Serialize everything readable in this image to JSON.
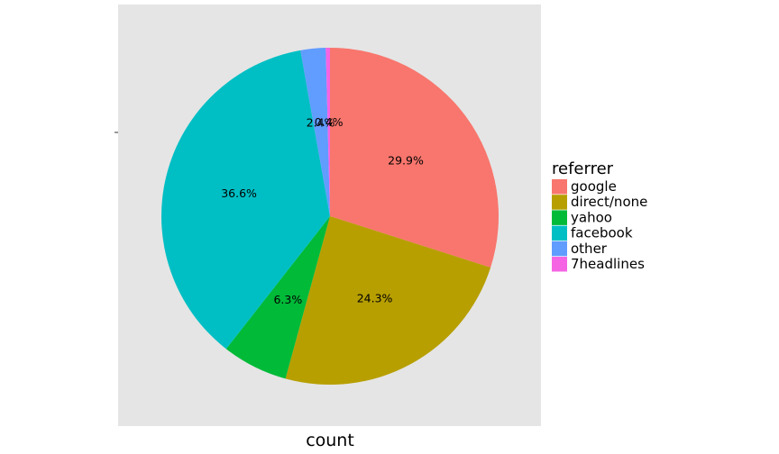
{
  "chart_data": {
    "type": "pie",
    "title": "",
    "xlabel": "count",
    "ylabel": "",
    "grid": false,
    "legend": {
      "title": "referrer",
      "placement": "right"
    },
    "start_angle_deg": 0,
    "direction": "clockwise",
    "slices": [
      {
        "name": "google",
        "value": 29.9,
        "label": "29.9%",
        "color": "#F8766D"
      },
      {
        "name": "direct/none",
        "value": 24.3,
        "label": "24.3%",
        "color": "#B79F00"
      },
      {
        "name": "yahoo",
        "value": 6.3,
        "label": "6.3%",
        "color": "#00BA38"
      },
      {
        "name": "facebook",
        "value": 36.6,
        "label": "36.6%",
        "color": "#00BFC4"
      },
      {
        "name": "other",
        "value": 2.4,
        "label": "2.4%",
        "color": "#619CFF"
      },
      {
        "name": "7headlines",
        "value": 0.4,
        "label": "0.4%",
        "color": "#F564E3"
      }
    ]
  }
}
